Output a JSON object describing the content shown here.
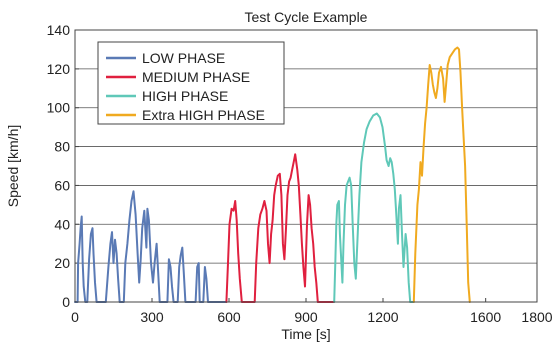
{
  "chart_data": {
    "type": "line",
    "title": "Test Cycle Example",
    "xlabel": "Time [s]",
    "ylabel": "Speed [km/h]",
    "xlim": [
      0,
      1800
    ],
    "ylim": [
      0,
      140
    ],
    "xticks": [
      0,
      300,
      600,
      900,
      1200,
      1600,
      1800
    ],
    "xtick_labels": [
      "0",
      "300",
      "600",
      "900",
      "1200",
      "1600",
      "1800"
    ],
    "yticks": [
      0,
      20,
      40,
      60,
      80,
      100,
      120,
      140
    ],
    "grid": "horizontal",
    "legend_position": "top-left",
    "series": [
      {
        "name": "LOW PHASE",
        "color": "#5a7ab5",
        "points": [
          [
            0,
            0
          ],
          [
            10,
            0
          ],
          [
            12,
            20
          ],
          [
            18,
            30
          ],
          [
            22,
            38
          ],
          [
            26,
            44
          ],
          [
            30,
            20
          ],
          [
            34,
            8
          ],
          [
            40,
            0
          ],
          [
            48,
            0
          ],
          [
            55,
            22
          ],
          [
            62,
            35
          ],
          [
            68,
            38
          ],
          [
            72,
            25
          ],
          [
            78,
            10
          ],
          [
            84,
            0
          ],
          [
            120,
            0
          ],
          [
            130,
            18
          ],
          [
            138,
            30
          ],
          [
            144,
            36
          ],
          [
            150,
            20
          ],
          [
            156,
            32
          ],
          [
            162,
            25
          ],
          [
            168,
            12
          ],
          [
            174,
            0
          ],
          [
            190,
            0
          ],
          [
            196,
            20
          ],
          [
            204,
            30
          ],
          [
            212,
            42
          ],
          [
            220,
            52
          ],
          [
            228,
            57
          ],
          [
            236,
            45
          ],
          [
            244,
            25
          ],
          [
            250,
            10
          ],
          [
            256,
            22
          ],
          [
            262,
            38
          ],
          [
            270,
            47
          ],
          [
            278,
            28
          ],
          [
            282,
            48
          ],
          [
            288,
            42
          ],
          [
            296,
            20
          ],
          [
            304,
            10
          ],
          [
            310,
            20
          ],
          [
            318,
            30
          ],
          [
            324,
            15
          ],
          [
            330,
            0
          ],
          [
            360,
            0
          ],
          [
            366,
            22
          ],
          [
            372,
            18
          ],
          [
            378,
            8
          ],
          [
            384,
            0
          ],
          [
            400,
            0
          ],
          [
            406,
            18
          ],
          [
            412,
            24
          ],
          [
            418,
            28
          ],
          [
            424,
            15
          ],
          [
            430,
            0
          ],
          [
            470,
            0
          ],
          [
            476,
            18
          ],
          [
            482,
            20
          ],
          [
            486,
            0
          ],
          [
            500,
            0
          ],
          [
            506,
            18
          ],
          [
            512,
            12
          ],
          [
            518,
            0
          ],
          [
            590,
            0
          ]
        ]
      },
      {
        "name": "MEDIUM PHASE",
        "color": "#e0203f",
        "points": [
          [
            590,
            0
          ],
          [
            596,
            20
          ],
          [
            602,
            40
          ],
          [
            610,
            48
          ],
          [
            618,
            47
          ],
          [
            624,
            52
          ],
          [
            630,
            42
          ],
          [
            636,
            25
          ],
          [
            642,
            12
          ],
          [
            650,
            0
          ],
          [
            700,
            0
          ],
          [
            706,
            20
          ],
          [
            714,
            38
          ],
          [
            722,
            45
          ],
          [
            730,
            48
          ],
          [
            738,
            52
          ],
          [
            746,
            47
          ],
          [
            752,
            30
          ],
          [
            758,
            20
          ],
          [
            764,
            35
          ],
          [
            770,
            42
          ],
          [
            776,
            55
          ],
          [
            782,
            60
          ],
          [
            790,
            65
          ],
          [
            798,
            66
          ],
          [
            804,
            55
          ],
          [
            810,
            30
          ],
          [
            816,
            22
          ],
          [
            822,
            38
          ],
          [
            828,
            55
          ],
          [
            834,
            62
          ],
          [
            840,
            64
          ],
          [
            846,
            68
          ],
          [
            852,
            72
          ],
          [
            858,
            76
          ],
          [
            866,
            68
          ],
          [
            872,
            60
          ],
          [
            878,
            45
          ],
          [
            884,
            30
          ],
          [
            890,
            18
          ],
          [
            896,
            8
          ],
          [
            904,
            40
          ],
          [
            910,
            55
          ],
          [
            916,
            50
          ],
          [
            922,
            38
          ],
          [
            928,
            30
          ],
          [
            934,
            18
          ],
          [
            940,
            10
          ],
          [
            946,
            0
          ],
          [
            1010,
            0
          ]
        ]
      },
      {
        "name": "HIGH PHASE",
        "color": "#5fc8b8",
        "points": [
          [
            1010,
            0
          ],
          [
            1014,
            20
          ],
          [
            1018,
            40
          ],
          [
            1022,
            50
          ],
          [
            1028,
            52
          ],
          [
            1032,
            35
          ],
          [
            1038,
            20
          ],
          [
            1042,
            10
          ],
          [
            1046,
            30
          ],
          [
            1052,
            50
          ],
          [
            1058,
            60
          ],
          [
            1064,
            62
          ],
          [
            1070,
            64
          ],
          [
            1076,
            60
          ],
          [
            1082,
            40
          ],
          [
            1088,
            20
          ],
          [
            1094,
            12
          ],
          [
            1100,
            30
          ],
          [
            1108,
            55
          ],
          [
            1116,
            72
          ],
          [
            1126,
            82
          ],
          [
            1136,
            89
          ],
          [
            1148,
            93
          ],
          [
            1162,
            96
          ],
          [
            1176,
            97
          ],
          [
            1188,
            95
          ],
          [
            1198,
            90
          ],
          [
            1208,
            80
          ],
          [
            1214,
            73
          ],
          [
            1222,
            70
          ],
          [
            1228,
            74
          ],
          [
            1234,
            72
          ],
          [
            1240,
            66
          ],
          [
            1246,
            58
          ],
          [
            1252,
            45
          ],
          [
            1258,
            30
          ],
          [
            1262,
            48
          ],
          [
            1268,
            55
          ],
          [
            1274,
            35
          ],
          [
            1280,
            18
          ],
          [
            1288,
            35
          ],
          [
            1294,
            28
          ],
          [
            1300,
            10
          ],
          [
            1306,
            0
          ],
          [
            1320,
            0
          ]
        ]
      },
      {
        "name": "Extra HIGH PHASE",
        "color": "#f0aa20",
        "points": [
          [
            1320,
            0
          ],
          [
            1326,
            25
          ],
          [
            1334,
            50
          ],
          [
            1340,
            58
          ],
          [
            1346,
            72
          ],
          [
            1352,
            65
          ],
          [
            1358,
            80
          ],
          [
            1364,
            92
          ],
          [
            1370,
            100
          ],
          [
            1376,
            112
          ],
          [
            1382,
            122
          ],
          [
            1388,
            118
          ],
          [
            1394,
            112
          ],
          [
            1400,
            108
          ],
          [
            1406,
            105
          ],
          [
            1412,
            110
          ],
          [
            1418,
            118
          ],
          [
            1426,
            121
          ],
          [
            1434,
            115
          ],
          [
            1440,
            103
          ],
          [
            1446,
            112
          ],
          [
            1452,
            122
          ],
          [
            1460,
            126
          ],
          [
            1470,
            128
          ],
          [
            1480,
            130
          ],
          [
            1490,
            131
          ],
          [
            1496,
            130
          ],
          [
            1502,
            118
          ],
          [
            1508,
            100
          ],
          [
            1514,
            85
          ],
          [
            1520,
            70
          ],
          [
            1526,
            40
          ],
          [
            1532,
            10
          ],
          [
            1538,
            0
          ]
        ]
      }
    ]
  }
}
